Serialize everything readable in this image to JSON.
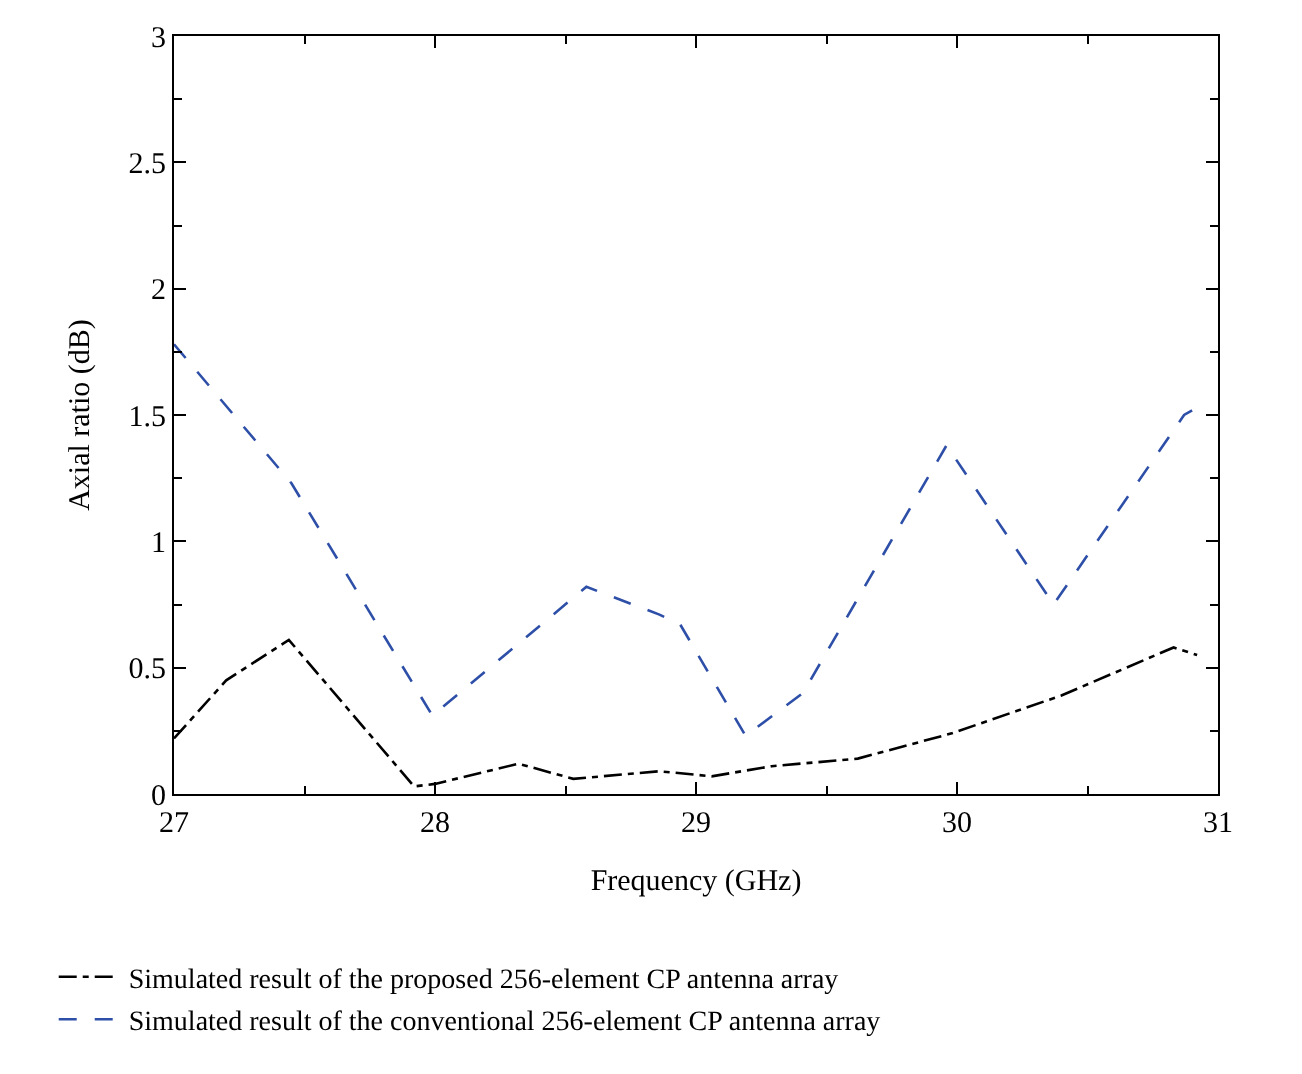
{
  "chart_data": {
    "type": "line",
    "xlabel": "Frequency (GHz)",
    "ylabel": "Axial ratio (dB)",
    "xlim": [
      27,
      31
    ],
    "xticks": [
      27,
      28,
      29,
      30,
      31
    ],
    "ylim": [
      0,
      3
    ],
    "yticks": [
      0,
      0.5,
      1,
      1.5,
      2,
      2.5,
      3
    ],
    "legend": "bottom left",
    "marker": "none",
    "series": [
      {
        "name": "Simulated result of the proposed 256-element CP antenna array",
        "color": "#000000",
        "line_style": "dotted",
        "x": [
          27.0,
          27.2,
          27.44,
          27.92,
          28.0,
          28.32,
          28.53,
          28.86,
          29.06,
          29.29,
          29.62,
          29.98,
          30.4,
          30.83,
          30.92
        ],
        "values": [
          0.22,
          0.45,
          0.61,
          0.03,
          0.04,
          0.12,
          0.06,
          0.09,
          0.07,
          0.11,
          0.14,
          0.24,
          0.39,
          0.58,
          0.55
        ]
      },
      {
        "name": "Simulated result of the conventional 256-element CP antenna array",
        "color": "#2e4fa8",
        "line_style": "dashed",
        "x": [
          27.0,
          27.45,
          27.99,
          28.58,
          28.86,
          28.94,
          29.19,
          29.41,
          29.96,
          30.37,
          30.87,
          30.92
        ],
        "values": [
          1.78,
          1.23,
          0.31,
          0.82,
          0.71,
          0.67,
          0.23,
          0.4,
          1.38,
          0.75,
          1.5,
          1.53
        ]
      }
    ]
  }
}
